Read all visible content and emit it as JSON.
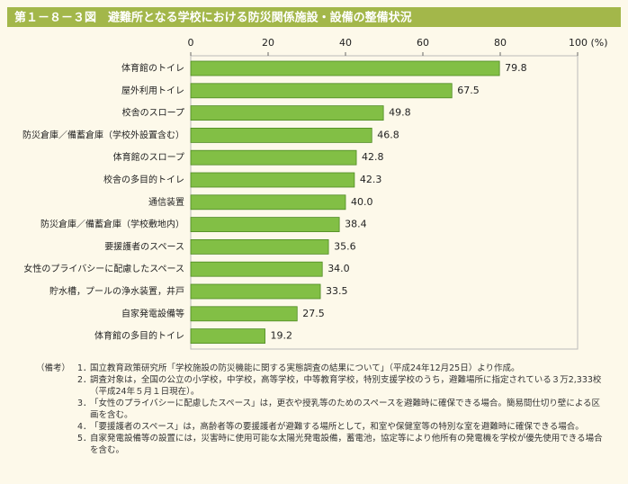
{
  "chart_data": {
    "type": "bar",
    "orientation": "horizontal",
    "title": "第１－８－３図　避難所となる学校における防災関係施設・設備の整備状況",
    "categories": [
      "体育館のトイレ",
      "屋外利用トイレ",
      "校舎のスロープ",
      "防災倉庫／備蓄倉庫（学校外設置含む）",
      "体育館のスロープ",
      "校舎の多目的トイレ",
      "通信装置",
      "防災倉庫／備蓄倉庫（学校敷地内）",
      "要援護者のスペース",
      "女性のプライバシーに配慮したスペース",
      "貯水槽，プールの浄水装置，井戸",
      "自家発電設備等",
      "体育館の多目的トイレ"
    ],
    "values": [
      79.8,
      67.5,
      49.8,
      46.8,
      42.8,
      42.3,
      40.0,
      38.4,
      35.6,
      34.0,
      33.5,
      27.5,
      19.2
    ],
    "value_labels": [
      "79.8",
      "67.5",
      "49.8",
      "46.8",
      "42.8",
      "42.3",
      "40.0",
      "38.4",
      "35.6",
      "34.0",
      "33.5",
      "27.5",
      "19.2"
    ],
    "color": "#82bf45",
    "xlim": [
      0,
      100
    ],
    "xticks": [
      0,
      20,
      40,
      60,
      80,
      {
        "value": 100,
        "label": "100 (%)"
      }
    ]
  },
  "notes": {
    "label": "（備考）",
    "items": [
      {
        "number": "1．",
        "text": "国立教育政策研究所「学校施設の防災機能に関する実態調査の結果について」（平成24年12月25日）より作成。"
      },
      {
        "number": "2．",
        "text": "調査対象は，全国の公立の小学校，中学校，高等学校，中等教育学校，特別支援学校のうち，避難場所に指定されている３万2,333校（平成24年５月１日現在）。"
      },
      {
        "number": "3．",
        "text": "「女性のプライバシーに配慮したスペース」は，更衣や授乳等のためのスペースを避難時に確保できる場合。簡易間仕切り壁による区画を含む。"
      },
      {
        "number": "4．",
        "text": "「要援護者のスペース」は，高齢者等の要援護者が避難する場所として，和室や保健室等の特別な室を避難時に確保できる場合。"
      },
      {
        "number": "5．",
        "text": "自家発電設備等の設置には，災害時に使用可能な太陽光発電設備，蓄電池，協定等により他所有の発電機を学校が優先使用できる場合を含む。"
      }
    ]
  }
}
